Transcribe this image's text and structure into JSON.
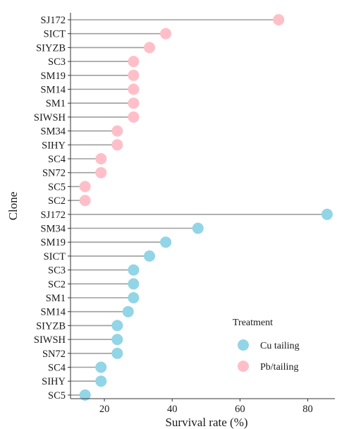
{
  "chart_data": {
    "type": "lollipop",
    "xlabel": "Survival rate (%)",
    "ylabel": "Clone",
    "xlim": [
      10,
      88
    ],
    "xticks": [
      20,
      40,
      60,
      80
    ],
    "legend": {
      "title": "Treatment",
      "placement": "bottom-right",
      "entries": [
        "Cu tailing",
        "Pb/tailing"
      ]
    },
    "colors": {
      "Cu tailing": "#92d5e6",
      "Pb/tailing": "#ffbfc9",
      "stem": "#9e9e9e",
      "axis": "#333333"
    },
    "categories": [
      "SJ172",
      "SICT",
      "SIYZB",
      "SC3",
      "SM19",
      "SM14",
      "SM1",
      "SIWSH",
      "SM34",
      "SIHY",
      "SC4",
      "SN72",
      "SC5",
      "SC2",
      "SJ172",
      "SM34",
      "SM19",
      "SICT",
      "SC3",
      "SC2",
      "SM1",
      "SM14",
      "SIYZB",
      "SIWSH",
      "SN72",
      "SC4",
      "SIHY",
      "SC5"
    ],
    "series": [
      {
        "name": "Pb/tailing",
        "points": [
          {
            "clone": "SJ172",
            "value": 71.4
          },
          {
            "clone": "SICT",
            "value": 38.1
          },
          {
            "clone": "SIYZB",
            "value": 33.3
          },
          {
            "clone": "SC3",
            "value": 28.6
          },
          {
            "clone": "SM19",
            "value": 28.6
          },
          {
            "clone": "SM14",
            "value": 28.6
          },
          {
            "clone": "SM1",
            "value": 28.6
          },
          {
            "clone": "SIWSH",
            "value": 28.6
          },
          {
            "clone": "SM34",
            "value": 23.8
          },
          {
            "clone": "SIHY",
            "value": 23.8
          },
          {
            "clone": "SC4",
            "value": 19.0
          },
          {
            "clone": "SN72",
            "value": 19.0
          },
          {
            "clone": "SC5",
            "value": 14.3
          },
          {
            "clone": "SC2",
            "value": 14.3
          }
        ]
      },
      {
        "name": "Cu tailing",
        "points": [
          {
            "clone": "SJ172",
            "value": 85.7
          },
          {
            "clone": "SM34",
            "value": 47.6
          },
          {
            "clone": "SM19",
            "value": 38.1
          },
          {
            "clone": "SICT",
            "value": 33.3
          },
          {
            "clone": "SC3",
            "value": 28.6
          },
          {
            "clone": "SC2",
            "value": 28.6
          },
          {
            "clone": "SM1",
            "value": 28.6
          },
          {
            "clone": "SM14",
            "value": 27.0
          },
          {
            "clone": "SIYZB",
            "value": 23.8
          },
          {
            "clone": "SIWSH",
            "value": 23.8
          },
          {
            "clone": "SN72",
            "value": 23.8
          },
          {
            "clone": "SC4",
            "value": 19.0
          },
          {
            "clone": "SIHY",
            "value": 19.0
          },
          {
            "clone": "SC5",
            "value": 14.3
          }
        ]
      }
    ]
  }
}
